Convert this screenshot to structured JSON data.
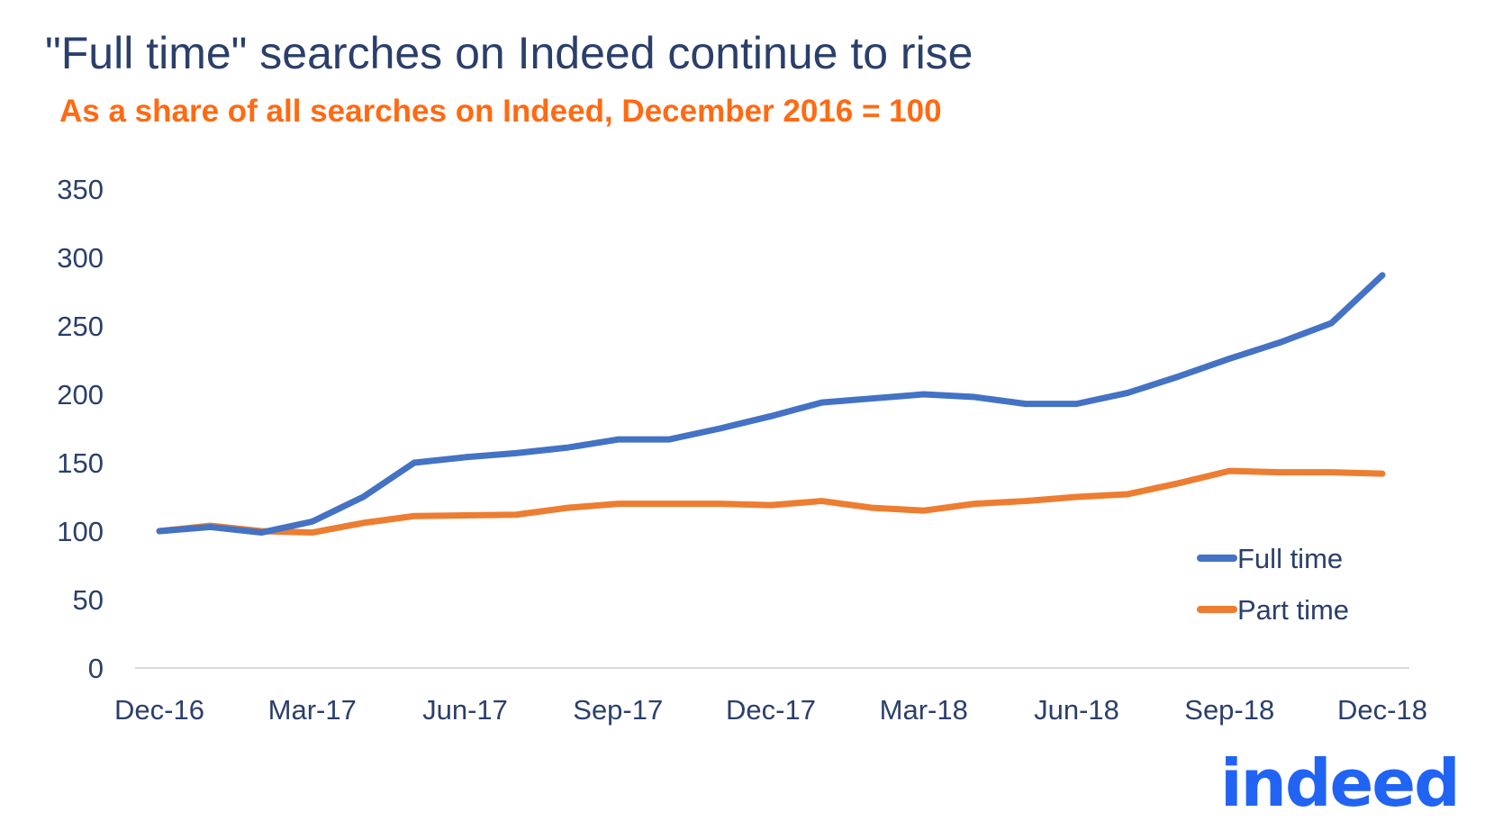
{
  "logo_text": "indeed",
  "chart_data": {
    "type": "line",
    "title": "\"Full time\" searches on Indeed continue to rise",
    "subtitle": "As a share of all searches on Indeed, December 2016 = 100",
    "xlabel": "",
    "ylabel": "",
    "ylim": [
      0,
      350
    ],
    "yticks": [
      0,
      50,
      100,
      150,
      200,
      250,
      300,
      350
    ],
    "x": [
      "Dec-16",
      "Jan-17",
      "Feb-17",
      "Mar-17",
      "Apr-17",
      "May-17",
      "Jun-17",
      "Jul-17",
      "Aug-17",
      "Sep-17",
      "Oct-17",
      "Nov-17",
      "Dec-17",
      "Jan-18",
      "Feb-18",
      "Mar-18",
      "Apr-18",
      "May-18",
      "Jun-18",
      "Jul-18",
      "Aug-18",
      "Sep-18",
      "Oct-18",
      "Nov-18",
      "Dec-18"
    ],
    "xtick_labels": [
      "Dec-16",
      "Mar-17",
      "Jun-17",
      "Sep-17",
      "Dec-17",
      "Mar-18",
      "Jun-18",
      "Sep-18",
      "Dec-18"
    ],
    "grid": false,
    "legend": "bottom-right",
    "series": [
      {
        "name": "Full time",
        "color": "#4472C4",
        "values": [
          100,
          103,
          99,
          107,
          125,
          150,
          154,
          157,
          161,
          167,
          167,
          175,
          184,
          194,
          197,
          200,
          198,
          193,
          193,
          201,
          213,
          226,
          238,
          252,
          287
        ]
      },
      {
        "name": "Part time",
        "color": "#ED7D31",
        "values": [
          100,
          104,
          100,
          99,
          106,
          111,
          111.5,
          112,
          117,
          120,
          120,
          120,
          119,
          122,
          117,
          115,
          120,
          122,
          125,
          127,
          135,
          144,
          143,
          143,
          142
        ]
      }
    ]
  }
}
